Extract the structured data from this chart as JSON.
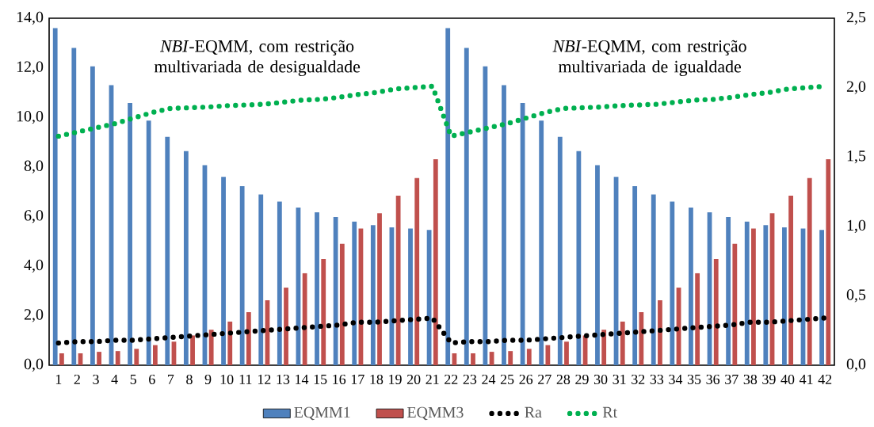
{
  "chart_data": {
    "type": "bar",
    "annotations": [
      "*NBI*-EQMM, com restrição multivariada de desigualdade",
      "*NBI*-EQMM, com restrição multivariada de igualdade"
    ],
    "categories": [
      "1",
      "2",
      "3",
      "4",
      "5",
      "6",
      "7",
      "8",
      "9",
      "10",
      "11",
      "12",
      "13",
      "14",
      "15",
      "16",
      "17",
      "18",
      "19",
      "20",
      "21",
      "22",
      "23",
      "24",
      "25",
      "26",
      "27",
      "28",
      "29",
      "30",
      "31",
      "32",
      "33",
      "34",
      "35",
      "36",
      "37",
      "38",
      "39",
      "40",
      "41",
      "42"
    ],
    "series": [
      {
        "name": "EQMM1",
        "color": "#4f81bd",
        "values": [
          13.6,
          12.8,
          12.06,
          11.3,
          10.58,
          9.87,
          9.21,
          8.64,
          8.07,
          7.6,
          7.22,
          6.89,
          6.6,
          6.36,
          6.17,
          5.98,
          5.79,
          5.65,
          5.56,
          5.51,
          5.46,
          13.6,
          12.8,
          12.06,
          11.3,
          10.58,
          9.87,
          9.21,
          8.64,
          8.07,
          7.6,
          7.22,
          6.89,
          6.6,
          6.36,
          6.17,
          5.98,
          5.79,
          5.65,
          5.56,
          5.51,
          5.46
        ]
      },
      {
        "name": "EQMM3",
        "color": "#c0504d",
        "values": [
          0.48,
          0.48,
          0.54,
          0.57,
          0.66,
          0.81,
          0.95,
          1.2,
          1.43,
          1.76,
          2.14,
          2.62,
          3.13,
          3.71,
          4.28,
          4.9,
          5.51,
          6.13,
          6.84,
          7.55,
          8.31,
          0.48,
          0.48,
          0.54,
          0.57,
          0.66,
          0.81,
          0.95,
          1.2,
          1.43,
          1.76,
          2.14,
          2.62,
          3.13,
          3.71,
          4.28,
          4.9,
          5.51,
          6.13,
          6.84,
          7.55,
          8.31
        ]
      },
      {
        "name": "Ra",
        "type": "line",
        "axis": "y2",
        "line_style": "dotted",
        "color": "#000000",
        "values": [
          0.16,
          0.17,
          0.17,
          0.18,
          0.18,
          0.19,
          0.2,
          0.21,
          0.22,
          0.23,
          0.24,
          0.25,
          0.26,
          0.27,
          0.28,
          0.29,
          0.31,
          0.31,
          0.32,
          0.33,
          0.34,
          0.16,
          0.17,
          0.17,
          0.18,
          0.18,
          0.19,
          0.2,
          0.21,
          0.22,
          0.23,
          0.24,
          0.25,
          0.26,
          0.27,
          0.28,
          0.29,
          0.31,
          0.31,
          0.32,
          0.33,
          0.34
        ]
      },
      {
        "name": "Rt",
        "type": "line",
        "axis": "y2",
        "line_style": "dotted",
        "color": "#00b050",
        "values": [
          1.65,
          1.68,
          1.71,
          1.74,
          1.78,
          1.82,
          1.85,
          1.855,
          1.86,
          1.87,
          1.875,
          1.88,
          1.895,
          1.91,
          1.915,
          1.93,
          1.95,
          1.965,
          1.99,
          2.0,
          2.01,
          1.65,
          1.68,
          1.71,
          1.74,
          1.78,
          1.82,
          1.85,
          1.855,
          1.86,
          1.87,
          1.875,
          1.88,
          1.895,
          1.91,
          1.915,
          1.93,
          1.95,
          1.965,
          1.99,
          2.0,
          2.01
        ]
      }
    ],
    "ylim": [
      0,
      14
    ],
    "yticks": [
      {
        "value": 0,
        "label": "0,0"
      },
      {
        "value": 2,
        "label": "2,0"
      },
      {
        "value": 4,
        "label": "4,0"
      },
      {
        "value": 6,
        "label": "6,0"
      },
      {
        "value": 8,
        "label": "8,0"
      },
      {
        "value": 10,
        "label": "10,0"
      },
      {
        "value": 12,
        "label": "12,0"
      },
      {
        "value": 14,
        "label": "14,0"
      }
    ],
    "y2lim": [
      0,
      2.5
    ],
    "y2ticks": [
      {
        "value": 0,
        "label": "0,0"
      },
      {
        "value": 0.5,
        "label": "0,5"
      },
      {
        "value": 1,
        "label": "1,0"
      },
      {
        "value": 1.5,
        "label": "1,5"
      },
      {
        "value": 2,
        "label": "2,0"
      },
      {
        "value": 2.5,
        "label": "2,5"
      }
    ],
    "legend": "bottom"
  }
}
